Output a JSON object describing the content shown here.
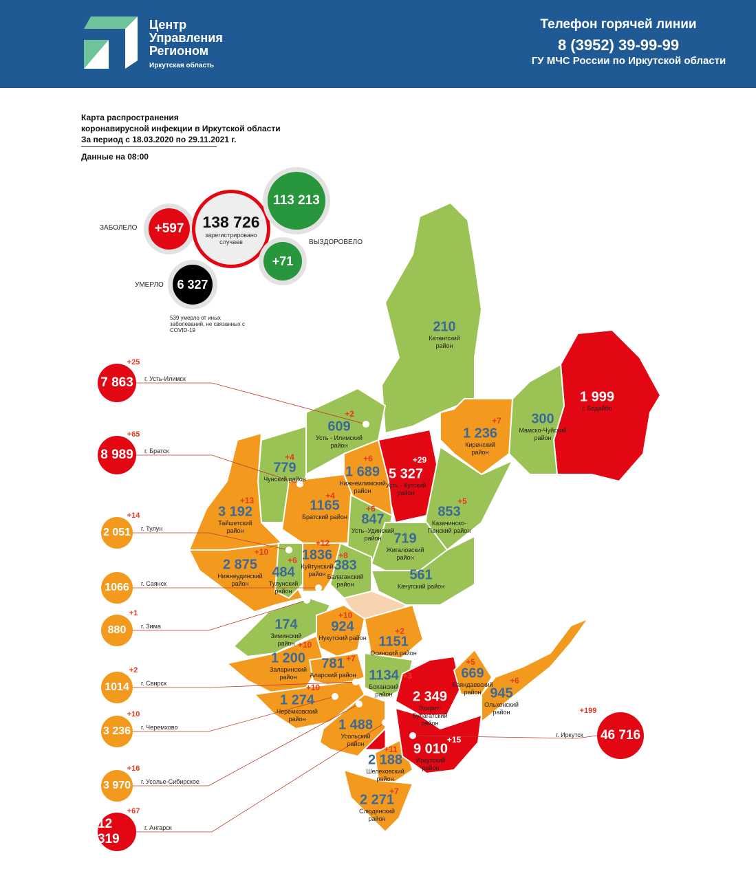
{
  "header": {
    "logo_lines": [
      "Центр",
      "Управления",
      "Регионом"
    ],
    "logo_sub": "Иркутская область",
    "hotline_title": "Телефон горячей линии",
    "hotline_phone": "8 (3952) 39-99-99",
    "hotline_org": "ГУ МЧС России по Иркутской области"
  },
  "title": {
    "line1": "Карта распространения",
    "line2": "коронавирусной инфекции в Иркутской области",
    "line3": "За период с 18.03.2020 по 29.11.2021 г.",
    "data_time": "Данные на 08:00"
  },
  "stats": {
    "sick_label": "ЗАБОЛЕЛО",
    "sick_delta": "+597",
    "total": "138 726",
    "total_caption": "зарегистрировано случаев",
    "recovered": "113 213",
    "recovered_delta": "+71",
    "recovered_label": "ВЫЗДОРОВЕЛО",
    "died_label": "УМЕРЛО",
    "died": "6 327",
    "other_deaths_note": "539 умерло от иных заболеваний, не связанных с COVID-19"
  },
  "colors": {
    "red": "#e30613",
    "orange": "#f39a1e",
    "green": "#9bc254",
    "peach": "#f7d3b0",
    "value_blue": "#3c6a96",
    "header_blue": "#1f5a94"
  },
  "regions": [
    {
      "name": "Катангский район",
      "value": "210",
      "delta": "",
      "color": "green"
    },
    {
      "name": "г. Бодайбо",
      "value": "1 999",
      "delta": "",
      "color": "red"
    },
    {
      "name": "Мамско-Чуйский район",
      "value": "300",
      "delta": "",
      "color": "green"
    },
    {
      "name": "Киренский район",
      "value": "1 236",
      "delta": "+7",
      "color": "orange"
    },
    {
      "name": "Усть - Кутский район",
      "value": "5 327",
      "delta": "+29",
      "color": "red"
    },
    {
      "name": "Казачинско-Пенский район",
      "value": "853",
      "delta": "+5",
      "color": "green"
    },
    {
      "name": "Усть - Илимский район",
      "value": "609",
      "delta": "+2",
      "color": "green"
    },
    {
      "name": "Нижнеилимский район",
      "value": "1 689",
      "delta": "+6",
      "color": "orange"
    },
    {
      "name": "Чунский район",
      "value": "779",
      "delta": "+4",
      "color": "green"
    },
    {
      "name": "Тайшетский район",
      "value": "3 192",
      "delta": "+13",
      "color": "orange"
    },
    {
      "name": "Братский район",
      "value": "1165",
      "delta": "+4",
      "color": "orange"
    },
    {
      "name": "Усть–Удинский район",
      "value": "847",
      "delta": "+6",
      "color": "green"
    },
    {
      "name": "Жигаловский район",
      "value": "719",
      "delta": "",
      "color": "green"
    },
    {
      "name": "Качугский район",
      "value": "561",
      "delta": "",
      "color": "green"
    },
    {
      "name": "Нижнеудинский район",
      "value": "2 875",
      "delta": "+10",
      "color": "orange"
    },
    {
      "name": "Тулунский район",
      "value": "484",
      "delta": "+6",
      "color": "green"
    },
    {
      "name": "Куйтунский район",
      "value": "1836",
      "delta": "+12",
      "color": "orange"
    },
    {
      "name": "Балаганский район",
      "value": "383",
      "delta": "+8",
      "color": "green"
    },
    {
      "name": "Зиминский район",
      "value": "174",
      "delta": "",
      "color": "green"
    },
    {
      "name": "Нукутский район",
      "value": "924",
      "delta": "+10",
      "color": "orange"
    },
    {
      "name": "Осинский район",
      "value": "1151",
      "delta": "+2",
      "color": "orange"
    },
    {
      "name": "Заларинский район",
      "value": "1 200",
      "delta": "+10",
      "color": "orange"
    },
    {
      "name": "Аларский район",
      "value": "781",
      "delta": "+7",
      "color": "orange"
    },
    {
      "name": "Боханский район",
      "value": "1134",
      "delta": "+3",
      "color": "green"
    },
    {
      "name": "Черемховский район",
      "value": "1 274",
      "delta": "+10",
      "color": "orange"
    },
    {
      "name": "Усольский район",
      "value": "1 488",
      "delta": "",
      "color": "orange"
    },
    {
      "name": "Шелеховский район",
      "value": "2 188",
      "delta": "+11",
      "color": "orange"
    },
    {
      "name": "Слюдянский район",
      "value": "2 271",
      "delta": "+7",
      "color": "orange"
    },
    {
      "name": "Иркутский район",
      "value": "9 010",
      "delta": "+15",
      "color": "red"
    },
    {
      "name": "Эхирит-Булагатский район",
      "value": "2 349",
      "delta": "",
      "color": "red"
    },
    {
      "name": "Баяндаевский район",
      "value": "669",
      "delta": "+5",
      "color": "orange"
    },
    {
      "name": "Ольхонский район",
      "value": "945",
      "delta": "+6",
      "color": "orange"
    }
  ],
  "cities": [
    {
      "name": "г. Усть-Илимск",
      "value": "7 863",
      "delta": "+25",
      "color": "red"
    },
    {
      "name": "г. Братск",
      "value": "8 989",
      "delta": "+65",
      "color": "red"
    },
    {
      "name": "г. Тулун",
      "value": "2 051",
      "delta": "+14",
      "color": "orange"
    },
    {
      "name": "г. Саянск",
      "value": "1066",
      "delta": "",
      "color": "orange"
    },
    {
      "name": "г. Зима",
      "value": "880",
      "delta": "+1",
      "color": "orange"
    },
    {
      "name": "г. Свирск",
      "value": "1014",
      "delta": "+2",
      "color": "orange"
    },
    {
      "name": "г. Черемхово",
      "value": "3 236",
      "delta": "+10",
      "color": "orange"
    },
    {
      "name": "г. Усолье-Сибирское",
      "value": "3 970",
      "delta": "+16",
      "color": "orange"
    },
    {
      "name": "г. Ангарск",
      "value": "12 319",
      "delta": "+67",
      "color": "red"
    },
    {
      "name": "г. Иркутск",
      "value": "46 716",
      "delta": "+199",
      "color": "red"
    }
  ]
}
